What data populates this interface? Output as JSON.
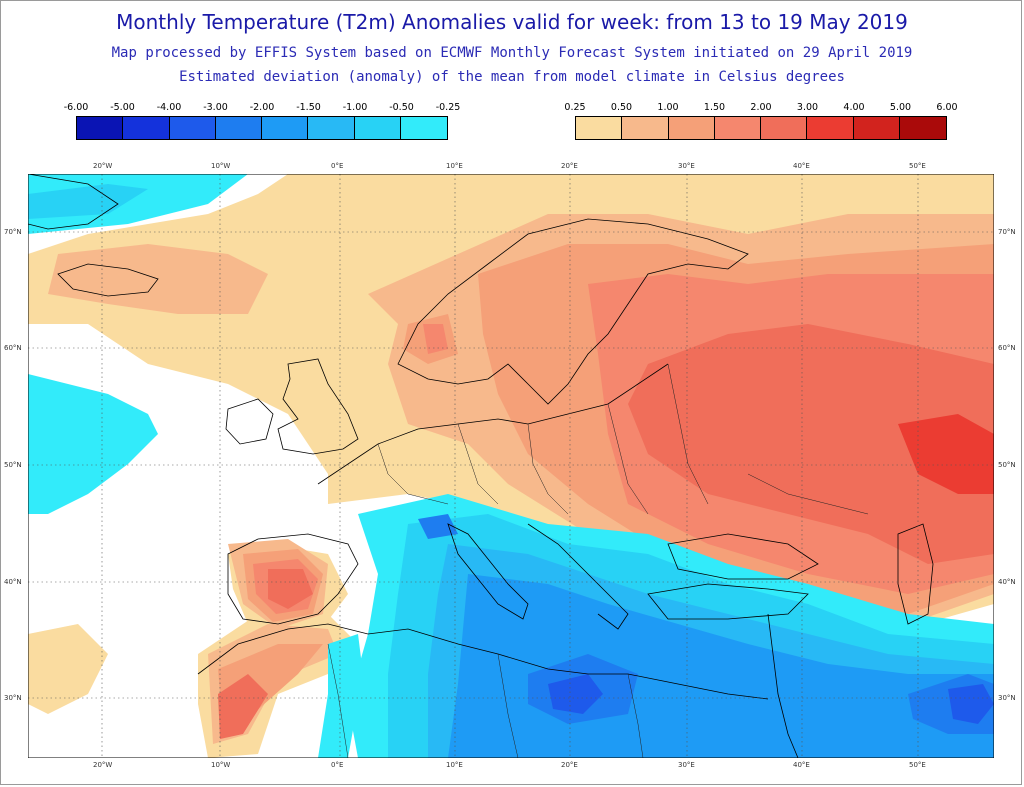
{
  "header": {
    "title": "Monthly Temperature (T2m) Anomalies valid for week: from 13 to 19 May 2019",
    "subtitle1": "Map processed by EFFIS System based on ECMWF Monthly Forecast System initiated on 29 April 2019",
    "subtitle2": "Estimated deviation (anomaly) of the mean from model climate in Celsius degrees"
  },
  "legend": {
    "cold": {
      "labels": [
        "-6.00",
        "-5.00",
        "-4.00",
        "-3.00",
        "-2.00",
        "-1.50",
        "-1.00",
        "-0.50",
        "-0.25"
      ],
      "colors": [
        "#0a14b4",
        "#1432dc",
        "#1e5aeb",
        "#1e7df0",
        "#1e9bf5",
        "#28b9f5",
        "#28d2f5",
        "#32ebfa"
      ]
    },
    "warm": {
      "labels": [
        "0.25",
        "0.50",
        "1.00",
        "1.50",
        "2.00",
        "3.00",
        "4.00",
        "5.00",
        "6.00"
      ],
      "colors": [
        "#fadca0",
        "#f7b98c",
        "#f5a078",
        "#f5876e",
        "#f06e5a",
        "#eb3c32",
        "#d2231e",
        "#aa0a0a"
      ]
    }
  },
  "axes": {
    "lon_labels": [
      "20°W",
      "10°W",
      "0°E",
      "10°E",
      "20°E",
      "30°E",
      "40°E",
      "50°E"
    ],
    "lat_labels": [
      "70°N",
      "60°N",
      "50°N",
      "40°N",
      "30°N"
    ]
  },
  "map_colors": {
    "water_no_anomaly": "#ffffff",
    "coast": "#000000",
    "grid": "#555555"
  }
}
